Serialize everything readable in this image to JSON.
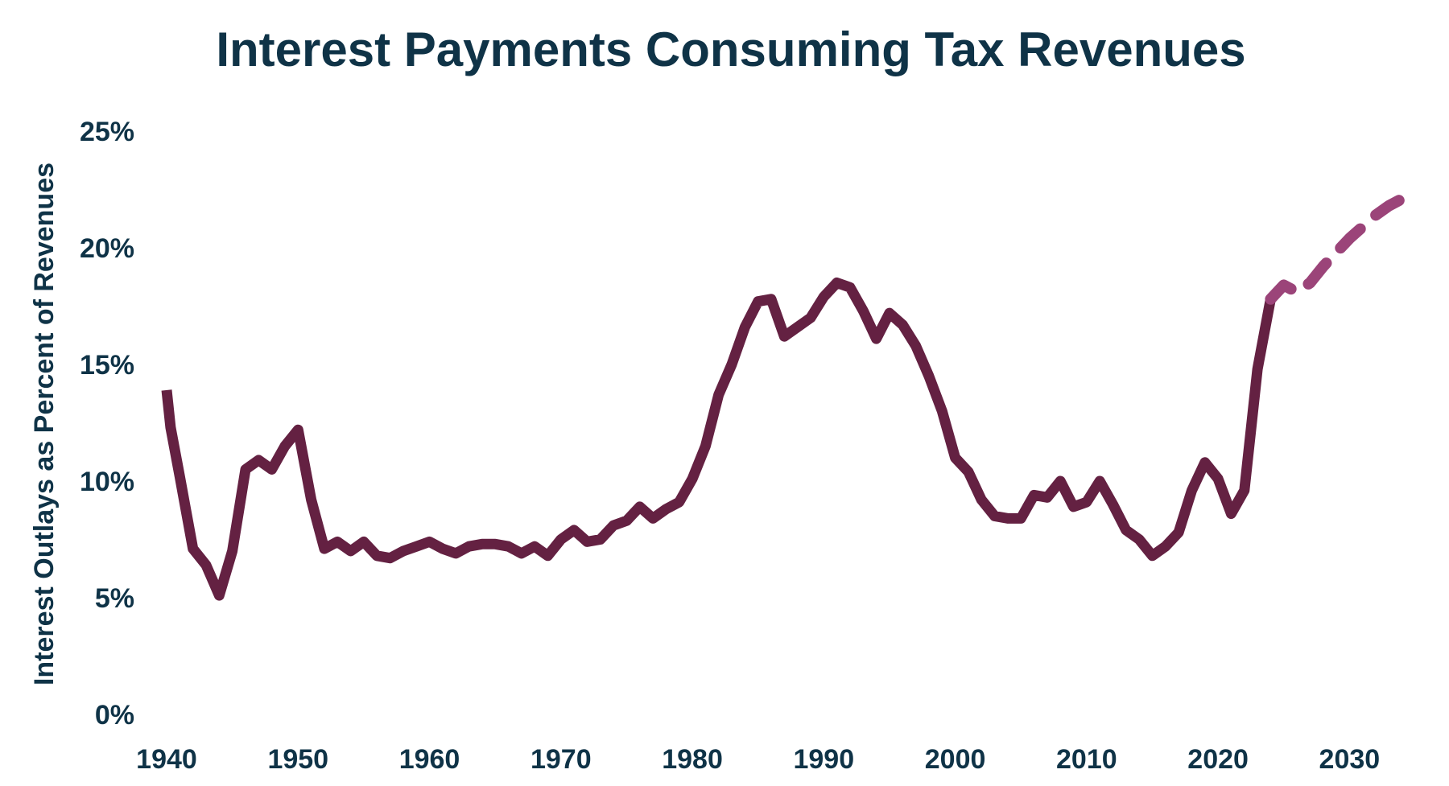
{
  "colors": {
    "text": "#0f3347",
    "historical_line": "#642142",
    "projected_line": "#9b4479"
  },
  "chart_data": {
    "type": "line",
    "title": "Interest Payments Consuming Tax Revenues",
    "xlabel": "",
    "ylabel": "Interest Outlays as Percent of Revenues",
    "xlim": [
      1940,
      2035
    ],
    "ylim": [
      0,
      25
    ],
    "x_ticks": [
      1940,
      1950,
      1960,
      1970,
      1980,
      1990,
      2000,
      2010,
      2020,
      2030
    ],
    "x_tick_labels": [
      "1940",
      "1950",
      "1960",
      "1970",
      "1980",
      "1990",
      "2000",
      "2010",
      "2020",
      "2030"
    ],
    "y_ticks": [
      0,
      5,
      10,
      15,
      20,
      25
    ],
    "y_tick_labels": [
      "0%",
      "5%",
      "10%",
      "15%",
      "20%",
      "25%"
    ],
    "grid": false,
    "legend": "none",
    "series": [
      {
        "style": "solid",
        "color": "#642142",
        "x": [
          1940,
          1940.3,
          1941,
          1942,
          1943,
          1944,
          1945,
          1946,
          1947,
          1948,
          1949,
          1950,
          1951,
          1952,
          1953,
          1954,
          1955,
          1956,
          1957,
          1958,
          1959,
          1960,
          1961,
          1962,
          1963,
          1964,
          1965,
          1966,
          1967,
          1968,
          1969,
          1970,
          1971,
          1972,
          1973,
          1974,
          1975,
          1976,
          1977,
          1978,
          1979,
          1980,
          1981,
          1982,
          1983,
          1984,
          1985,
          1986,
          1987,
          1988,
          1989,
          1990,
          1991,
          1992,
          1993,
          1994,
          1995,
          1996,
          1997,
          1998,
          1999,
          2000,
          2001,
          2002,
          2003,
          2004,
          2005,
          2006,
          2007,
          2008,
          2009,
          2010,
          2011,
          2012,
          2013,
          2014,
          2015,
          2016,
          2017,
          2018,
          2019,
          2020,
          2021,
          2022,
          2023,
          2024
        ],
        "y": [
          13.9,
          12.3,
          10.2,
          7.1,
          6.4,
          5.1,
          7.0,
          10.5,
          10.9,
          10.5,
          11.5,
          12.2,
          9.2,
          7.1,
          7.4,
          7.0,
          7.4,
          6.8,
          6.7,
          7.0,
          7.2,
          7.4,
          7.1,
          6.9,
          7.2,
          7.3,
          7.3,
          7.2,
          6.9,
          7.2,
          6.8,
          7.5,
          7.9,
          7.4,
          7.5,
          8.1,
          8.3,
          8.9,
          8.4,
          8.8,
          9.1,
          10.1,
          11.5,
          13.7,
          15.0,
          16.6,
          17.7,
          17.8,
          16.2,
          16.6,
          17.0,
          17.9,
          18.5,
          18.3,
          17.3,
          16.1,
          17.2,
          16.7,
          15.8,
          14.5,
          13.0,
          11.0,
          10.4,
          9.2,
          8.5,
          8.4,
          8.4,
          9.4,
          9.3,
          10.0,
          8.9,
          9.1,
          10.0,
          9.0,
          7.9,
          7.5,
          6.8,
          7.2,
          7.8,
          9.6,
          10.8,
          10.1,
          8.6,
          9.6,
          14.8,
          17.8
        ]
      },
      {
        "style": "dashed",
        "color": "#9b4479",
        "x": [
          2024,
          2025,
          2026,
          2027,
          2028,
          2029,
          2030,
          2031,
          2032,
          2033,
          2034,
          2035
        ],
        "y": [
          17.8,
          18.4,
          18.1,
          18.5,
          19.2,
          19.8,
          20.4,
          20.9,
          21.4,
          21.8,
          22.1,
          22.3
        ]
      }
    ]
  }
}
